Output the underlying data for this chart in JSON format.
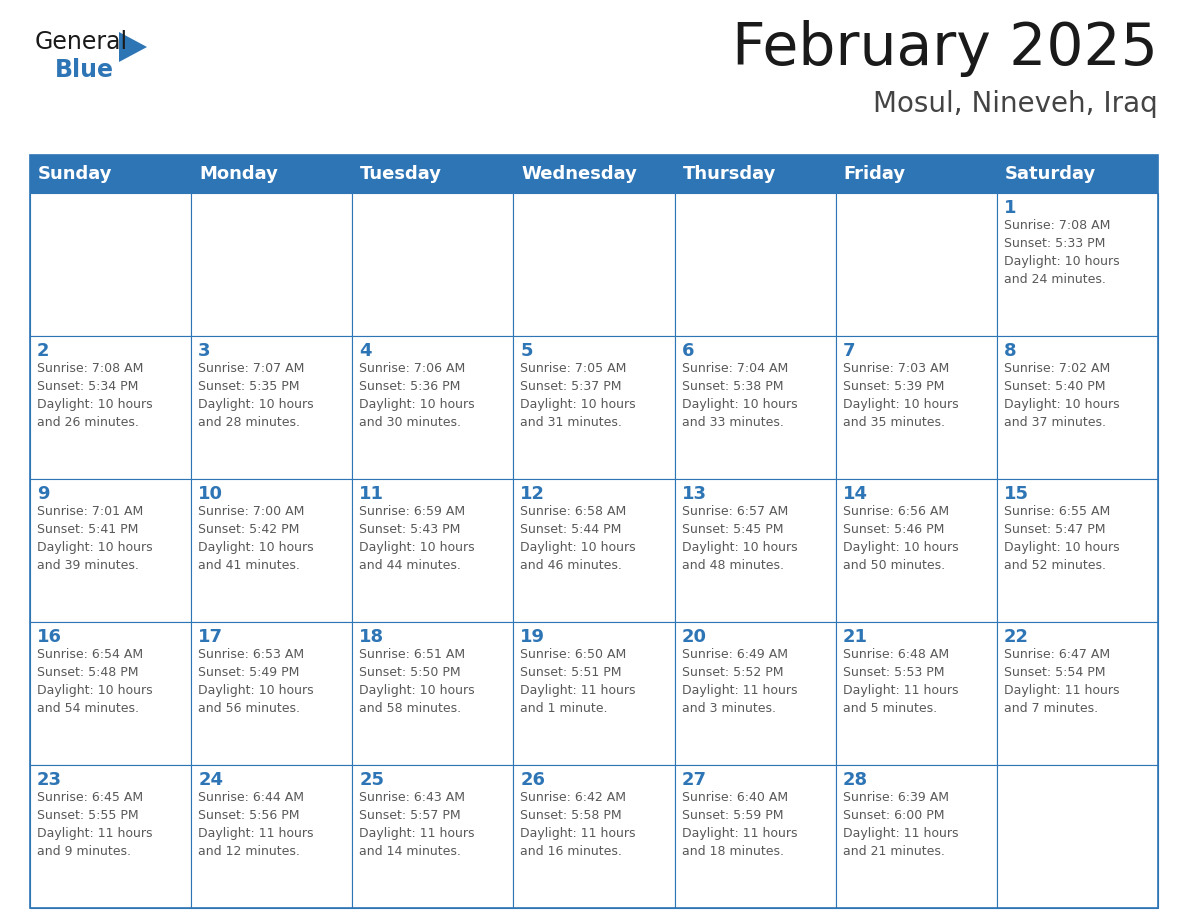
{
  "title": "February 2025",
  "subtitle": "Mosul, Nineveh, Iraq",
  "header_bg": "#2E75B6",
  "header_text_color": "#FFFFFF",
  "cell_border_color": "#2E75B6",
  "day_number_color": "#2E75B6",
  "info_text_color": "#595959",
  "background_color": "#FFFFFF",
  "days_of_week": [
    "Sunday",
    "Monday",
    "Tuesday",
    "Wednesday",
    "Thursday",
    "Friday",
    "Saturday"
  ],
  "weeks": [
    [
      {
        "day": null,
        "info": null
      },
      {
        "day": null,
        "info": null
      },
      {
        "day": null,
        "info": null
      },
      {
        "day": null,
        "info": null
      },
      {
        "day": null,
        "info": null
      },
      {
        "day": null,
        "info": null
      },
      {
        "day": 1,
        "info": "Sunrise: 7:08 AM\nSunset: 5:33 PM\nDaylight: 10 hours\nand 24 minutes."
      }
    ],
    [
      {
        "day": 2,
        "info": "Sunrise: 7:08 AM\nSunset: 5:34 PM\nDaylight: 10 hours\nand 26 minutes."
      },
      {
        "day": 3,
        "info": "Sunrise: 7:07 AM\nSunset: 5:35 PM\nDaylight: 10 hours\nand 28 minutes."
      },
      {
        "day": 4,
        "info": "Sunrise: 7:06 AM\nSunset: 5:36 PM\nDaylight: 10 hours\nand 30 minutes."
      },
      {
        "day": 5,
        "info": "Sunrise: 7:05 AM\nSunset: 5:37 PM\nDaylight: 10 hours\nand 31 minutes."
      },
      {
        "day": 6,
        "info": "Sunrise: 7:04 AM\nSunset: 5:38 PM\nDaylight: 10 hours\nand 33 minutes."
      },
      {
        "day": 7,
        "info": "Sunrise: 7:03 AM\nSunset: 5:39 PM\nDaylight: 10 hours\nand 35 minutes."
      },
      {
        "day": 8,
        "info": "Sunrise: 7:02 AM\nSunset: 5:40 PM\nDaylight: 10 hours\nand 37 minutes."
      }
    ],
    [
      {
        "day": 9,
        "info": "Sunrise: 7:01 AM\nSunset: 5:41 PM\nDaylight: 10 hours\nand 39 minutes."
      },
      {
        "day": 10,
        "info": "Sunrise: 7:00 AM\nSunset: 5:42 PM\nDaylight: 10 hours\nand 41 minutes."
      },
      {
        "day": 11,
        "info": "Sunrise: 6:59 AM\nSunset: 5:43 PM\nDaylight: 10 hours\nand 44 minutes."
      },
      {
        "day": 12,
        "info": "Sunrise: 6:58 AM\nSunset: 5:44 PM\nDaylight: 10 hours\nand 46 minutes."
      },
      {
        "day": 13,
        "info": "Sunrise: 6:57 AM\nSunset: 5:45 PM\nDaylight: 10 hours\nand 48 minutes."
      },
      {
        "day": 14,
        "info": "Sunrise: 6:56 AM\nSunset: 5:46 PM\nDaylight: 10 hours\nand 50 minutes."
      },
      {
        "day": 15,
        "info": "Sunrise: 6:55 AM\nSunset: 5:47 PM\nDaylight: 10 hours\nand 52 minutes."
      }
    ],
    [
      {
        "day": 16,
        "info": "Sunrise: 6:54 AM\nSunset: 5:48 PM\nDaylight: 10 hours\nand 54 minutes."
      },
      {
        "day": 17,
        "info": "Sunrise: 6:53 AM\nSunset: 5:49 PM\nDaylight: 10 hours\nand 56 minutes."
      },
      {
        "day": 18,
        "info": "Sunrise: 6:51 AM\nSunset: 5:50 PM\nDaylight: 10 hours\nand 58 minutes."
      },
      {
        "day": 19,
        "info": "Sunrise: 6:50 AM\nSunset: 5:51 PM\nDaylight: 11 hours\nand 1 minute."
      },
      {
        "day": 20,
        "info": "Sunrise: 6:49 AM\nSunset: 5:52 PM\nDaylight: 11 hours\nand 3 minutes."
      },
      {
        "day": 21,
        "info": "Sunrise: 6:48 AM\nSunset: 5:53 PM\nDaylight: 11 hours\nand 5 minutes."
      },
      {
        "day": 22,
        "info": "Sunrise: 6:47 AM\nSunset: 5:54 PM\nDaylight: 11 hours\nand 7 minutes."
      }
    ],
    [
      {
        "day": 23,
        "info": "Sunrise: 6:45 AM\nSunset: 5:55 PM\nDaylight: 11 hours\nand 9 minutes."
      },
      {
        "day": 24,
        "info": "Sunrise: 6:44 AM\nSunset: 5:56 PM\nDaylight: 11 hours\nand 12 minutes."
      },
      {
        "day": 25,
        "info": "Sunrise: 6:43 AM\nSunset: 5:57 PM\nDaylight: 11 hours\nand 14 minutes."
      },
      {
        "day": 26,
        "info": "Sunrise: 6:42 AM\nSunset: 5:58 PM\nDaylight: 11 hours\nand 16 minutes."
      },
      {
        "day": 27,
        "info": "Sunrise: 6:40 AM\nSunset: 5:59 PM\nDaylight: 11 hours\nand 18 minutes."
      },
      {
        "day": 28,
        "info": "Sunrise: 6:39 AM\nSunset: 6:00 PM\nDaylight: 11 hours\nand 21 minutes."
      },
      {
        "day": null,
        "info": null
      }
    ]
  ],
  "logo_general_color": "#1a1a1a",
  "logo_blue_color": "#2E75B6",
  "logo_triangle_color": "#2E75B6",
  "title_color": "#1a1a1a",
  "subtitle_color": "#444444",
  "title_fontsize": 42,
  "subtitle_fontsize": 20,
  "header_fontsize": 13,
  "day_num_fontsize": 13,
  "info_fontsize": 9
}
